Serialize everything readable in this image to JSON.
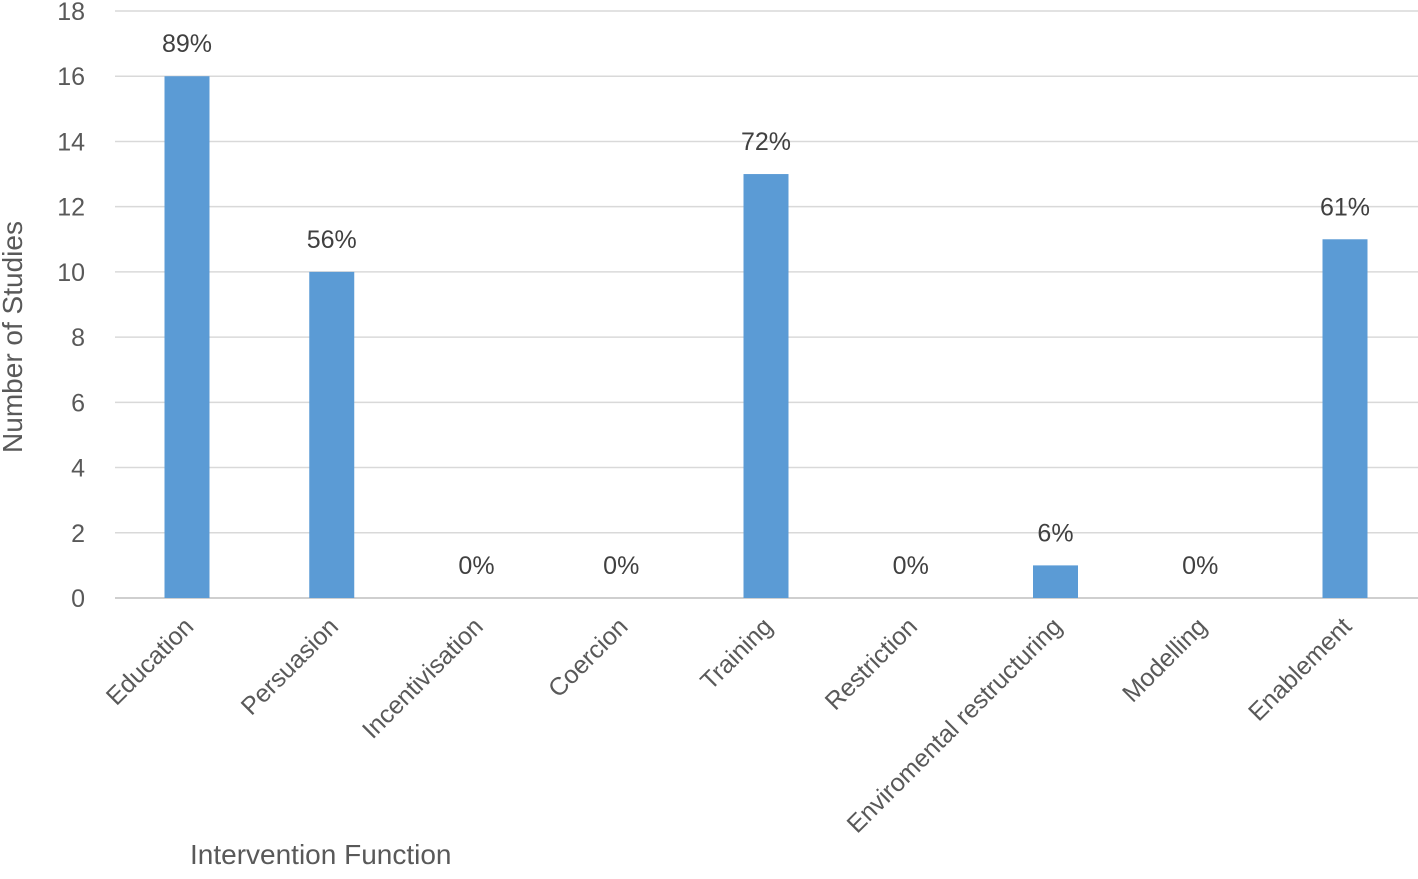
{
  "chart_data": {
    "type": "bar",
    "title": "",
    "xlabel": "Intervention Function",
    "ylabel": "Number of Studies",
    "categories": [
      "Education",
      "Persuasion",
      "Incentivisation",
      "Coercion",
      "Training",
      "Restriction",
      "Enviromental restructuring",
      "Modelling",
      "Enablement"
    ],
    "values": [
      16,
      10,
      0,
      0,
      13,
      0,
      1,
      0,
      11
    ],
    "data_labels": [
      "89%",
      "56%",
      "0%",
      "0%",
      "72%",
      "0%",
      "6%",
      "0%",
      "61%"
    ],
    "ylim": [
      0,
      18
    ],
    "yticks": [
      0,
      2,
      4,
      6,
      8,
      10,
      12,
      14,
      16,
      18
    ],
    "grid": true,
    "legend": "none",
    "bar_color": "#5b9bd5"
  }
}
